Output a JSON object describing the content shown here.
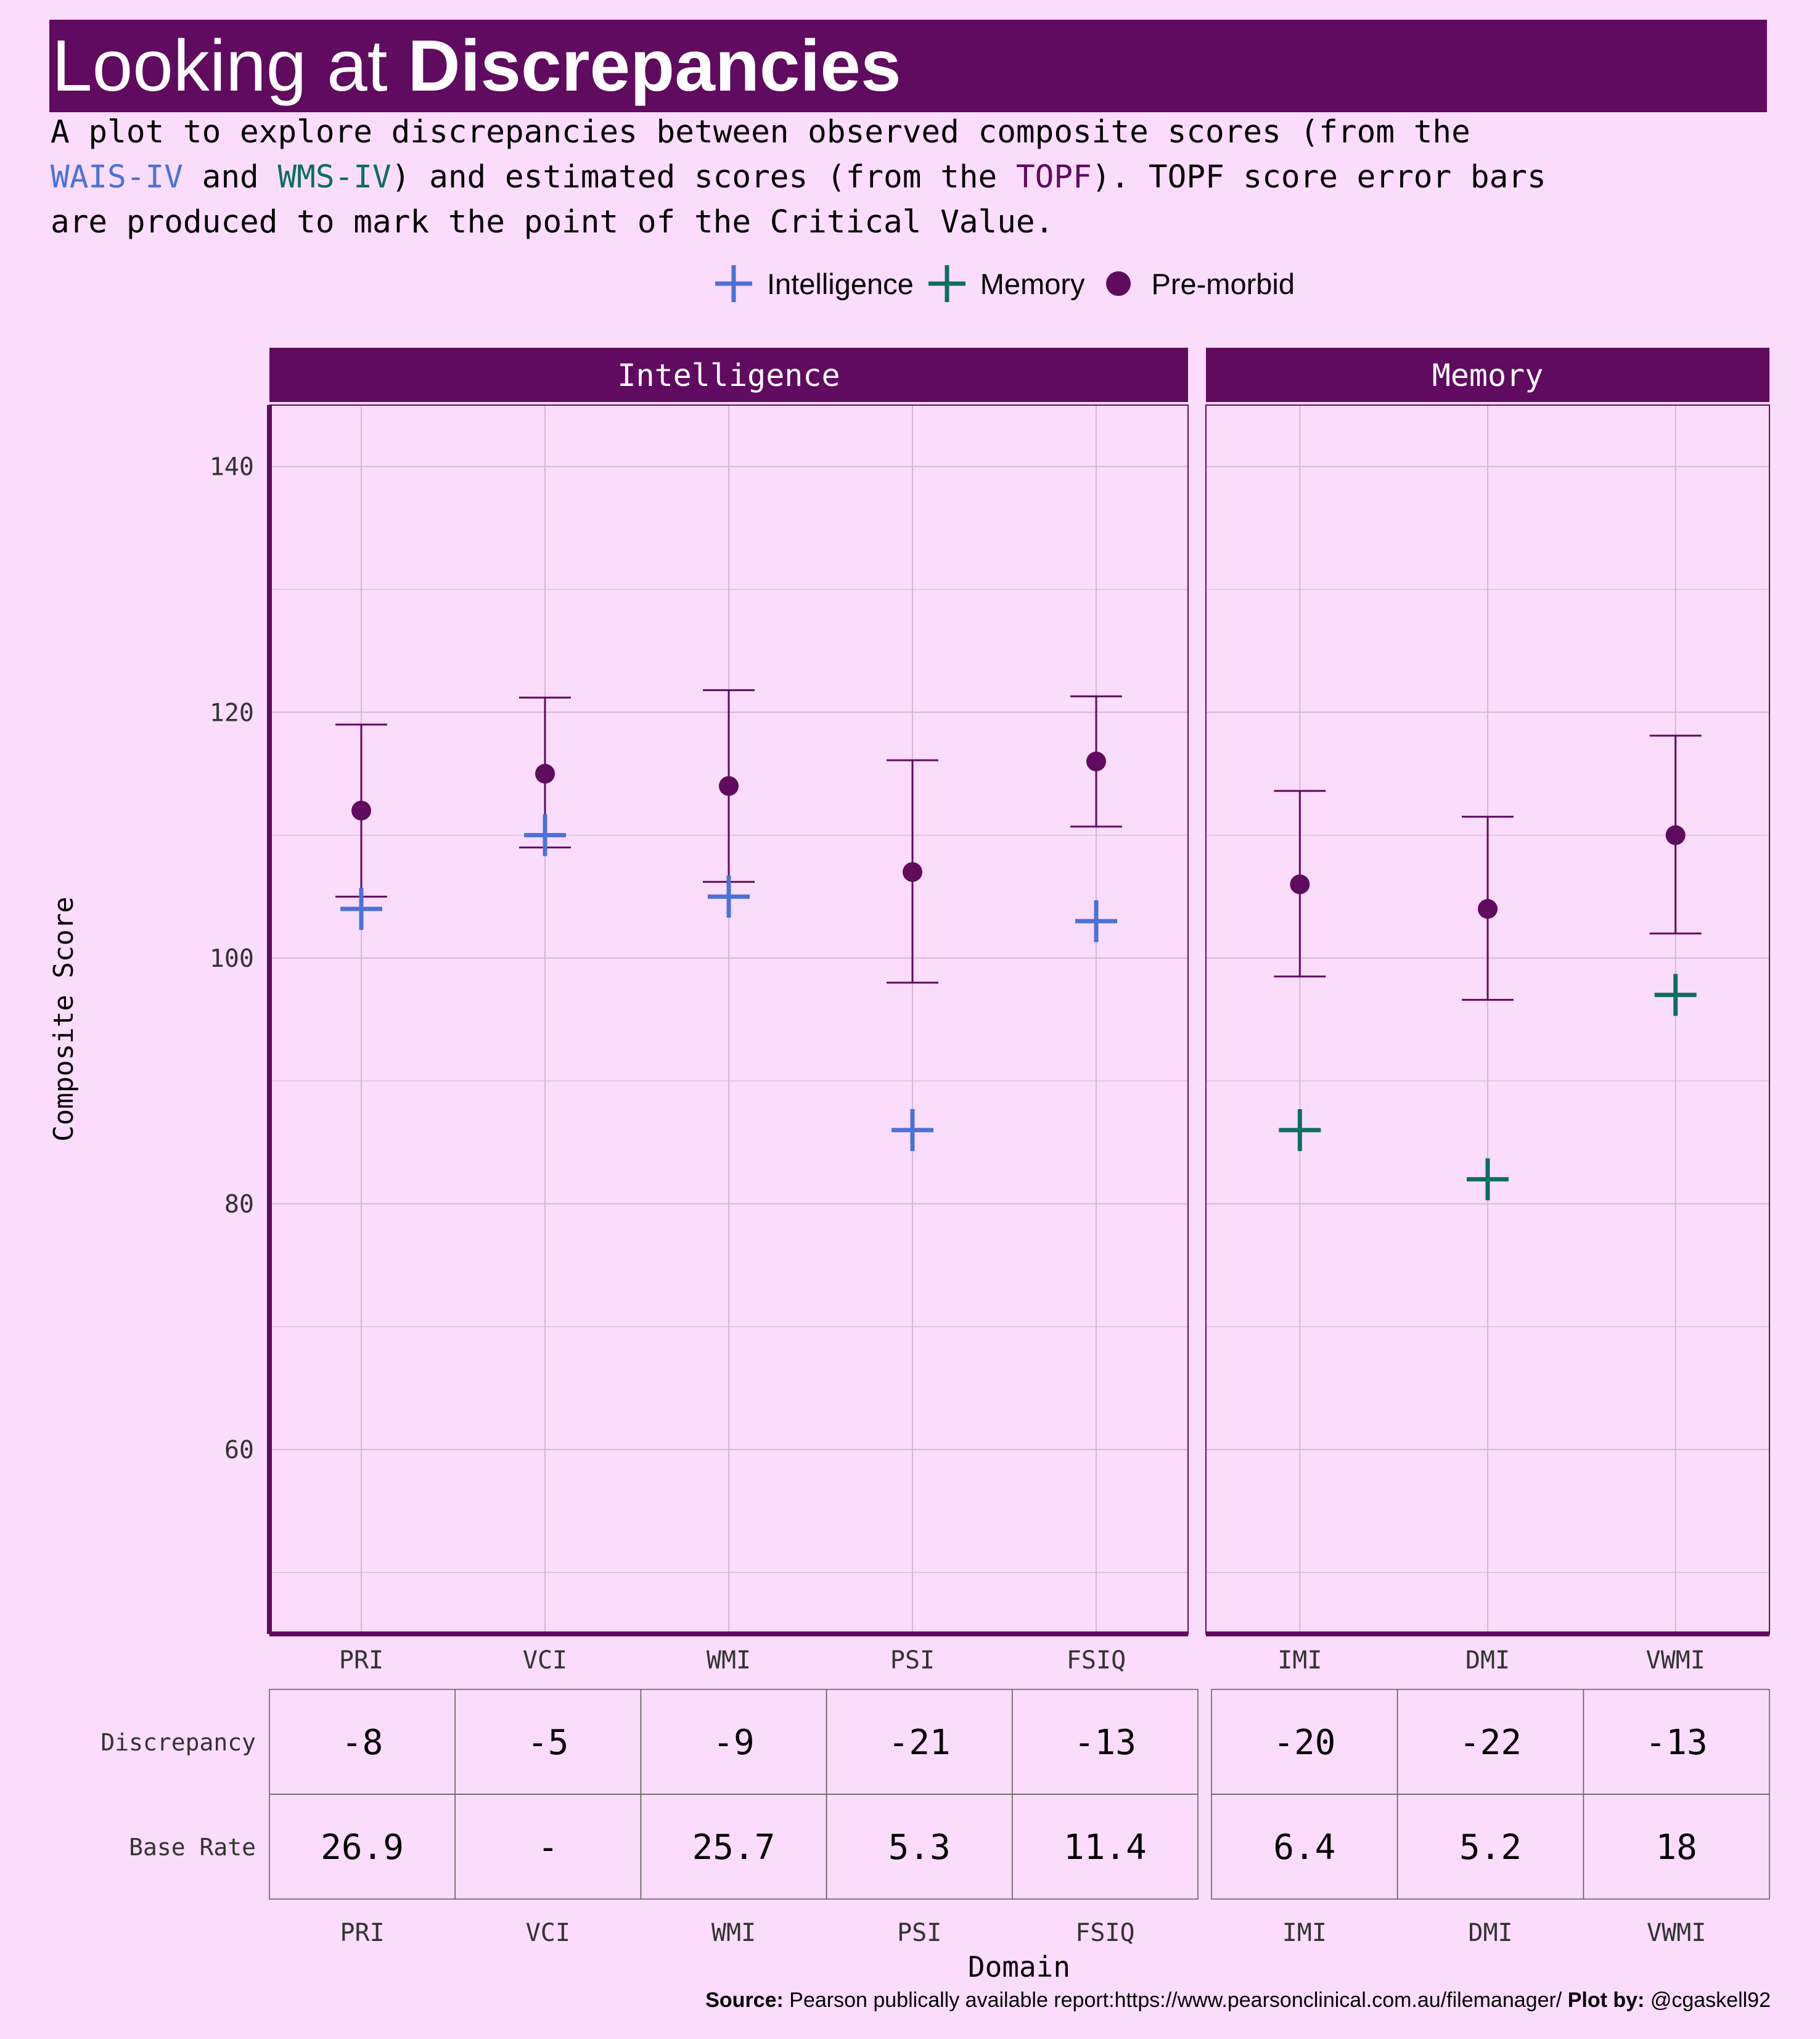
{
  "title": {
    "normal": "Looking at ",
    "bold": "Discrepancies"
  },
  "subtitle": {
    "line1": "A plot to explore discrepancies between observed composite scores (from the",
    "line2_pre": "",
    "wais": "WAIS-IV",
    "line2_and": " and ",
    "wms": "WMS-IV",
    "line2_mid": ") and estimated scores (from the ",
    "topf": "TOPF",
    "line2_post": "). TOPF score error bars",
    "line3": "are produced to mark the point of the Critical Value."
  },
  "legend": {
    "intelligence": "Intelligence",
    "memory": "Memory",
    "premorbid": "Pre-morbid"
  },
  "colors": {
    "intelligence": "#4b72d6",
    "memory": "#0c6e63",
    "premorbid": "#600a60",
    "background": "#fcdcfc"
  },
  "footer": {
    "source_label": "Source:",
    "source_text": " Pearson publically available report:https://www.pearsonclinical.com.au/filemanager/ ",
    "plot_label": "Plot by:",
    "plot_text": " @cgaskell92"
  },
  "chart_data": {
    "type": "scatter",
    "ylabel": "Composite Score",
    "xlabel": "Domain",
    "ylim": [
      45,
      145
    ],
    "yticks": [
      60,
      80,
      100,
      120,
      140
    ],
    "grid": true,
    "legend_position": "top",
    "panels": [
      {
        "name": "Intelligence",
        "series_key": "intelligence",
        "categories": [
          "PRI",
          "VCI",
          "WMI",
          "PSI",
          "FSIQ"
        ],
        "observed": [
          104,
          110,
          105,
          86,
          103
        ],
        "premorbid": [
          112,
          115,
          114,
          107,
          116
        ],
        "error_low": [
          105,
          109,
          106.2,
          98,
          110.7
        ],
        "error_high": [
          119,
          121.2,
          121.8,
          116.1,
          121.3
        ]
      },
      {
        "name": "Memory",
        "series_key": "memory",
        "categories": [
          "IMI",
          "DMI",
          "VWMI"
        ],
        "observed": [
          86,
          82,
          97
        ],
        "premorbid": [
          106,
          104,
          110
        ],
        "error_low": [
          98.5,
          96.6,
          102
        ],
        "error_high": [
          113.6,
          111.5,
          118.1
        ]
      }
    ],
    "table": {
      "row_labels": [
        "Discrepancy",
        "Base Rate"
      ],
      "panels": [
        {
          "categories": [
            "PRI",
            "VCI",
            "WMI",
            "PSI",
            "FSIQ"
          ],
          "discrepancy": [
            "-8",
            "-5",
            "-9",
            "-21",
            "-13"
          ],
          "base_rate": [
            "26.9",
            "-",
            "25.7",
            "5.3",
            "11.4"
          ]
        },
        {
          "categories": [
            "IMI",
            "DMI",
            "VWMI"
          ],
          "discrepancy": [
            "-20",
            "-22",
            "-13"
          ],
          "base_rate": [
            "6.4",
            "5.2",
            "18"
          ]
        }
      ]
    }
  }
}
